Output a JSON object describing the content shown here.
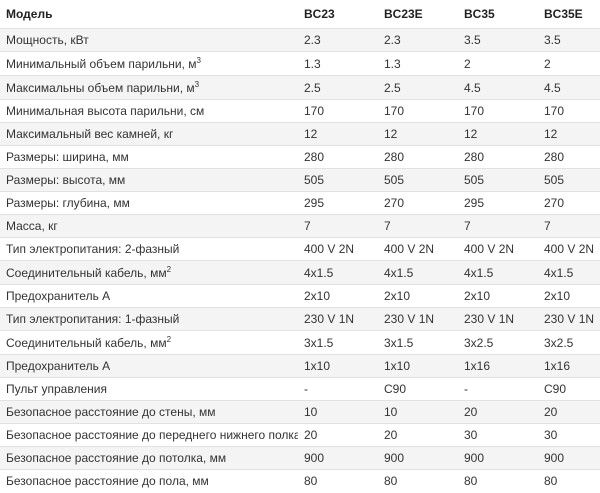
{
  "table": {
    "headers": [
      "Модель",
      "BC23",
      "BC23E",
      "BC35",
      "BC35E"
    ],
    "rows": [
      {
        "label": "Мощность, кВт",
        "values": [
          "2.3",
          "2.3",
          "3.5",
          "3.5"
        ]
      },
      {
        "label": "Минимальный объем парильни, м",
        "sup": "3",
        "values": [
          "1.3",
          "1.3",
          "2",
          "2"
        ]
      },
      {
        "label": "Максимальны объем парильни, м",
        "sup": "3",
        "values": [
          "2.5",
          "2.5",
          "4.5",
          "4.5"
        ]
      },
      {
        "label": "Минимальная высота парильни, см",
        "values": [
          "170",
          "170",
          "170",
          "170"
        ]
      },
      {
        "label": "Максимальный вес камней, кг",
        "values": [
          "12",
          "12",
          "12",
          "12"
        ]
      },
      {
        "label": "Размеры: ширина, мм",
        "values": [
          "280",
          "280",
          "280",
          "280"
        ]
      },
      {
        "label": "Размеры: высота, мм",
        "values": [
          "505",
          "505",
          "505",
          "505"
        ]
      },
      {
        "label": "Размеры: глубина, мм",
        "values": [
          "295",
          "270",
          "295",
          "270"
        ]
      },
      {
        "label": "Масса, кг",
        "values": [
          "7",
          "7",
          "7",
          "7"
        ]
      },
      {
        "label": "Тип электропитания: 2-фазный",
        "values": [
          "400 V 2N",
          "400 V 2N",
          "400 V 2N",
          "400 V 2N"
        ]
      },
      {
        "label": "Соединительный кабель, мм",
        "sup": "2",
        "values": [
          "4x1.5",
          "4x1.5",
          "4x1.5",
          "4x1.5"
        ]
      },
      {
        "label": "Предохранитель А",
        "values": [
          "2x10",
          "2x10",
          "2x10",
          "2x10"
        ]
      },
      {
        "label": "Тип электропитания: 1-фазный",
        "values": [
          "230 V 1N",
          "230 V 1N",
          "230 V 1N",
          "230 V 1N"
        ]
      },
      {
        "label": "Соединительный кабель, мм",
        "sup": "2",
        "values": [
          "3x1.5",
          "3x1.5",
          "3x2.5",
          "3x2.5"
        ]
      },
      {
        "label": "Предохранитель А",
        "values": [
          "1x10",
          "1x10",
          "1x16",
          "1x16"
        ]
      },
      {
        "label": "Пульт управления",
        "values": [
          "-",
          "C90",
          "-",
          "C90"
        ]
      },
      {
        "label": "Безопасное расстояние до стены, мм",
        "values": [
          "10",
          "10",
          "20",
          "20"
        ]
      },
      {
        "label": "Безопасное расстояние до переднего нижнего полка, мм",
        "values": [
          "20",
          "20",
          "30",
          "30"
        ]
      },
      {
        "label": "Безопасное расстояние до потолка, мм",
        "values": [
          "900",
          "900",
          "900",
          "900"
        ]
      },
      {
        "label": "Безопасное расстояние до пола, мм",
        "values": [
          "80",
          "80",
          "80",
          "80"
        ]
      }
    ]
  }
}
